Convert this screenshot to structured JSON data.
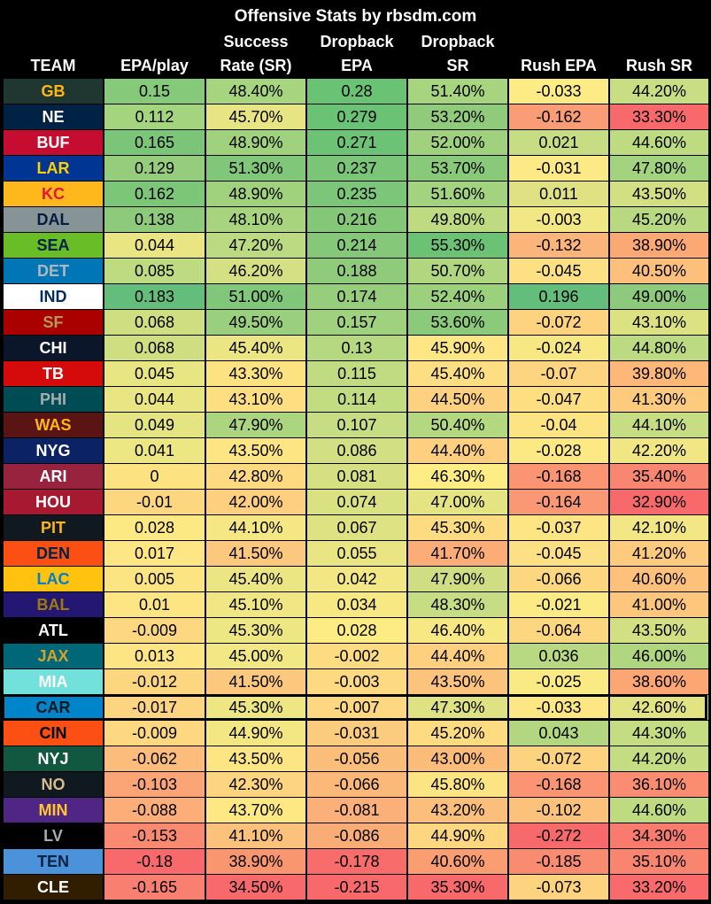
{
  "title": "Offensive Stats by rbsdm.com",
  "headers": [
    {
      "l1": "",
      "l2": "TEAM"
    },
    {
      "l1": "",
      "l2": "EPA/play"
    },
    {
      "l1": "Success",
      "l2": "Rate (SR)"
    },
    {
      "l1": "Dropback",
      "l2": "EPA"
    },
    {
      "l1": "Dropback",
      "l2": "SR"
    },
    {
      "l1": "",
      "l2": "Rush EPA"
    },
    {
      "l1": "",
      "l2": "Rush SR"
    }
  ],
  "highlighted_team": "CAR",
  "rows": [
    {
      "team": "GB",
      "team_bg": "#203731",
      "team_fg": "#FFB612",
      "cells": [
        "0.15",
        "48.40%",
        "0.28",
        "51.40%",
        "-0.033",
        "44.20%"
      ],
      "colors": [
        "#86c97a",
        "#a6d47f",
        "#6ac274",
        "#a6d47f",
        "#fdeb85",
        "#c8de84"
      ]
    },
    {
      "team": "NE",
      "team_bg": "#002244",
      "team_fg": "#ffffff",
      "cells": [
        "0.112",
        "45.70%",
        "0.279",
        "53.20%",
        "-0.162",
        "33.30%"
      ],
      "colors": [
        "#a5d47f",
        "#e7e583",
        "#6ac274",
        "#90cb7b",
        "#fa9c76",
        "#f8696b"
      ]
    },
    {
      "team": "BUF",
      "team_bg": "#C60C30",
      "team_fg": "#ffffff",
      "cells": [
        "0.165",
        "48.90%",
        "0.271",
        "52.00%",
        "0.021",
        "44.60%"
      ],
      "colors": [
        "#7ac578",
        "#a0d27e",
        "#6dc375",
        "#9fd17e",
        "#c6dd83",
        "#bfdb82"
      ]
    },
    {
      "team": "LAR",
      "team_bg": "#003594",
      "team_fg": "#FFD100",
      "cells": [
        "0.129",
        "51.30%",
        "0.237",
        "53.70%",
        "-0.031",
        "47.80%"
      ],
      "colors": [
        "#95cd7c",
        "#80c779",
        "#7ac578",
        "#89c97a",
        "#fde985",
        "#a3d37f"
      ]
    },
    {
      "team": "KC",
      "team_bg": "#FFB81C",
      "team_fg": "#E31837",
      "cells": [
        "0.162",
        "48.90%",
        "0.235",
        "51.60%",
        "0.011",
        "43.50%"
      ],
      "colors": [
        "#7cc678",
        "#a0d27e",
        "#7bc678",
        "#a3d37f",
        "#dfe183",
        "#d2df83"
      ]
    },
    {
      "team": "DAL",
      "team_bg": "#869397",
      "team_fg": "#041E42",
      "cells": [
        "0.138",
        "48.10%",
        "0.216",
        "49.80%",
        "-0.003",
        "45.20%"
      ],
      "colors": [
        "#8dca7b",
        "#a8d47f",
        "#84c779",
        "#bedb82",
        "#f1e784",
        "#b8d981"
      ]
    },
    {
      "team": "SEA",
      "team_bg": "#69BE28",
      "team_fg": "#002244",
      "cells": [
        "0.044",
        "47.20%",
        "0.214",
        "55.30%",
        "-0.132",
        "38.90%"
      ],
      "colors": [
        "#e9e583",
        "#bcda81",
        "#85c879",
        "#6bc274",
        "#fbb47a",
        "#fca875"
      ]
    },
    {
      "team": "DET",
      "team_bg": "#0076B6",
      "team_fg": "#B0B7BC",
      "cells": [
        "0.085",
        "46.20%",
        "0.188",
        "50.70%",
        "-0.045",
        "40.50%"
      ],
      "colors": [
        "#bedb82",
        "#d5df83",
        "#8fcb7b",
        "#b0d780",
        "#fde083",
        "#fdc07c"
      ]
    },
    {
      "team": "IND",
      "team_bg": "#ffffff",
      "team_fg": "#002C5F",
      "cells": [
        "0.183",
        "51.00%",
        "0.174",
        "52.40%",
        "0.196",
        "49.00%"
      ],
      "colors": [
        "#63be7b",
        "#81c779",
        "#96ce7c",
        "#9bd07d",
        "#63be7b",
        "#8dca7b"
      ]
    },
    {
      "team": "SF",
      "team_bg": "#AA0000",
      "team_fg": "#B3995D",
      "cells": [
        "0.068",
        "49.50%",
        "0.157",
        "53.60%",
        "-0.072",
        "43.10%"
      ],
      "colors": [
        "#d0de82",
        "#99cf7d",
        "#9fd17e",
        "#8bca7a",
        "#fdd380",
        "#dce182"
      ]
    },
    {
      "team": "CHI",
      "team_bg": "#0B162A",
      "team_fg": "#ffffff",
      "cells": [
        "0.068",
        "45.40%",
        "0.13",
        "45.90%",
        "-0.024",
        "44.80%"
      ],
      "colors": [
        "#d0de82",
        "#ebe583",
        "#b6d880",
        "#fde683",
        "#f8e884",
        "#bcda81"
      ]
    },
    {
      "team": "TB",
      "team_bg": "#D50A0A",
      "team_fg": "#ffffff",
      "cells": [
        "0.045",
        "43.30%",
        "0.115",
        "45.40%",
        "-0.07",
        "39.80%"
      ],
      "colors": [
        "#e8e583",
        "#fde282",
        "#c1db82",
        "#fdde82",
        "#fdd480",
        "#fcb779"
      ]
    },
    {
      "team": "PHI",
      "team_bg": "#004C54",
      "team_fg": "#A5ACAF",
      "cells": [
        "0.044",
        "43.10%",
        "0.114",
        "44.50%",
        "-0.047",
        "41.30%"
      ],
      "colors": [
        "#e9e583",
        "#fddf82",
        "#c2dc82",
        "#fdd17f",
        "#fddf82",
        "#fdcb7e"
      ]
    },
    {
      "team": "WAS",
      "team_bg": "#5A1414",
      "team_fg": "#FFB612",
      "cells": [
        "0.049",
        "47.90%",
        "0.107",
        "50.40%",
        "-0.04",
        "44.10%"
      ],
      "colors": [
        "#e4e483",
        "#abd57f",
        "#c6dd83",
        "#b4d880",
        "#fde483",
        "#c6dd83"
      ]
    },
    {
      "team": "NYG",
      "team_bg": "#0B2265",
      "team_fg": "#ffffff",
      "cells": [
        "0.041",
        "43.50%",
        "0.086",
        "44.40%",
        "-0.028",
        "42.20%"
      ],
      "colors": [
        "#ece683",
        "#fde583",
        "#d3df83",
        "#fdcf7f",
        "#fde984",
        "#f0e784"
      ]
    },
    {
      "team": "ARI",
      "team_bg": "#97233F",
      "team_fg": "#ffffff",
      "cells": [
        "0",
        "42.80%",
        "0.081",
        "46.30%",
        "-0.168",
        "35.40%"
      ],
      "colors": [
        "#fde282",
        "#fdd981",
        "#d6e083",
        "#fded84",
        "#fa9473",
        "#f98670"
      ]
    },
    {
      "team": "HOU",
      "team_bg": "#A71930",
      "team_fg": "#ffffff",
      "cells": [
        "-0.01",
        "42.00%",
        "0.074",
        "47.00%",
        "-0.164",
        "32.90%"
      ],
      "colors": [
        "#fdd780",
        "#fdcf7f",
        "#dae182",
        "#e4e483",
        "#fa9774",
        "#f8696b"
      ]
    },
    {
      "team": "PIT",
      "team_bg": "#101820",
      "team_fg": "#FFB612",
      "cells": [
        "0.028",
        "44.10%",
        "0.067",
        "45.30%",
        "-0.037",
        "42.10%"
      ],
      "colors": [
        "#fde984",
        "#f5e884",
        "#dfe283",
        "#fddc81",
        "#fde584",
        "#f2e784"
      ]
    },
    {
      "team": "DEN",
      "team_bg": "#FB4F14",
      "team_fg": "#002244",
      "cells": [
        "0.017",
        "41.50%",
        "0.055",
        "41.70%",
        "-0.045",
        "41.20%"
      ],
      "colors": [
        "#fde683",
        "#fcc87d",
        "#e9e583",
        "#fcac76",
        "#fde083",
        "#fdca7e"
      ]
    },
    {
      "team": "LAC",
      "team_bg": "#FFC20E",
      "team_fg": "#0080C6",
      "cells": [
        "0.005",
        "45.40%",
        "0.042",
        "47.90%",
        "-0.066",
        "40.60%"
      ],
      "colors": [
        "#fde483",
        "#ebe583",
        "#f2e784",
        "#cfde82",
        "#fdd680",
        "#fdc17c"
      ]
    },
    {
      "team": "BAL",
      "team_bg": "#241773",
      "team_fg": "#9E7C0C",
      "cells": [
        "0.01",
        "45.10%",
        "0.034",
        "48.30%",
        "-0.021",
        "41.00%"
      ],
      "colors": [
        "#fde583",
        "#f0e784",
        "#f7e884",
        "#c6dd83",
        "#fcea84",
        "#fdc67d"
      ]
    },
    {
      "team": "ATL",
      "team_bg": "#000000",
      "team_fg": "#ffffff",
      "cells": [
        "-0.009",
        "45.30%",
        "0.028",
        "46.40%",
        "-0.064",
        "43.50%"
      ],
      "colors": [
        "#fdd880",
        "#ede683",
        "#fdeb84",
        "#f8e884",
        "#fdd780",
        "#d2df83"
      ]
    },
    {
      "team": "JAX",
      "team_bg": "#006778",
      "team_fg": "#D7A22A",
      "cells": [
        "0.013",
        "45.00%",
        "-0.002",
        "44.40%",
        "0.036",
        "46.00%"
      ],
      "colors": [
        "#fde583",
        "#f1e784",
        "#fddb81",
        "#fdcf7f",
        "#b8d981",
        "#b0d780"
      ]
    },
    {
      "team": "MIA",
      "team_bg": "#72E1DC",
      "team_fg": "#ffffff",
      "cells": [
        "-0.012",
        "41.50%",
        "-0.003",
        "43.50%",
        "-0.025",
        "38.60%"
      ],
      "colors": [
        "#fdd680",
        "#fcc87d",
        "#fdda81",
        "#fcc37c",
        "#faea84",
        "#fca674"
      ]
    },
    {
      "team": "CAR",
      "team_bg": "#0085CA",
      "team_fg": "#101820",
      "cells": [
        "-0.017",
        "45.30%",
        "-0.007",
        "47.30%",
        "-0.033",
        "42.60%"
      ],
      "colors": [
        "#fdd47f",
        "#ede683",
        "#fdd880",
        "#dfe283",
        "#fde784",
        "#e2e383"
      ]
    },
    {
      "team": "CIN",
      "team_bg": "#FB4F14",
      "team_fg": "#000000",
      "cells": [
        "-0.009",
        "44.90%",
        "-0.031",
        "45.20%",
        "0.043",
        "44.30%"
      ],
      "colors": [
        "#fdd880",
        "#f3e784",
        "#fccc7e",
        "#fddb81",
        "#b2d780",
        "#c4dc82"
      ]
    },
    {
      "team": "NYJ",
      "team_bg": "#125740",
      "team_fg": "#ffffff",
      "cells": [
        "-0.062",
        "43.50%",
        "-0.056",
        "43.00%",
        "-0.072",
        "44.20%"
      ],
      "colors": [
        "#fcbc7b",
        "#fde583",
        "#fbbe7a",
        "#fbbc7a",
        "#fdd380",
        "#c5dd82"
      ]
    },
    {
      "team": "NO",
      "team_bg": "#101820",
      "team_fg": "#D3BC8D",
      "cells": [
        "-0.103",
        "42.30%",
        "-0.066",
        "45.80%",
        "-0.168",
        "36.10%"
      ],
      "colors": [
        "#fba577",
        "#fdd47f",
        "#fbb879",
        "#fde483",
        "#fa9473",
        "#fa8d71"
      ]
    },
    {
      "team": "MIN",
      "team_bg": "#4F2683",
      "team_fg": "#FFC62F",
      "cells": [
        "-0.088",
        "43.70%",
        "-0.081",
        "43.20%",
        "-0.102",
        "44.60%"
      ],
      "colors": [
        "#fcad78",
        "#fde883",
        "#fab078",
        "#fcbe7b",
        "#fcc27c",
        "#bfdb82"
      ]
    },
    {
      "team": "LV",
      "team_bg": "#000000",
      "team_fg": "#A5ACAF",
      "cells": [
        "-0.153",
        "41.10%",
        "-0.086",
        "44.90%",
        "-0.272",
        "34.30%"
      ],
      "colors": [
        "#f98a71",
        "#fcc27c",
        "#faac77",
        "#fdd780",
        "#f8696b",
        "#f87b6e"
      ]
    },
    {
      "team": "TEN",
      "team_bg": "#4B92DB",
      "team_fg": "#0C2340",
      "cells": [
        "-0.18",
        "38.90%",
        "-0.178",
        "40.60%",
        "-0.185",
        "35.10%"
      ],
      "colors": [
        "#f8696b",
        "#f9966f",
        "#f86d6c",
        "#fa9e72",
        "#f98b71",
        "#f98570"
      ]
    },
    {
      "team": "CLE",
      "team_bg": "#311D00",
      "team_fg": "#ffffff",
      "cells": [
        "-0.165",
        "34.50%",
        "-0.215",
        "35.30%",
        "-0.073",
        "33.20%"
      ],
      "colors": [
        "#f98070",
        "#f8696b",
        "#f8696b",
        "#f8696b",
        "#fdd37f",
        "#f86a6b"
      ]
    }
  ]
}
